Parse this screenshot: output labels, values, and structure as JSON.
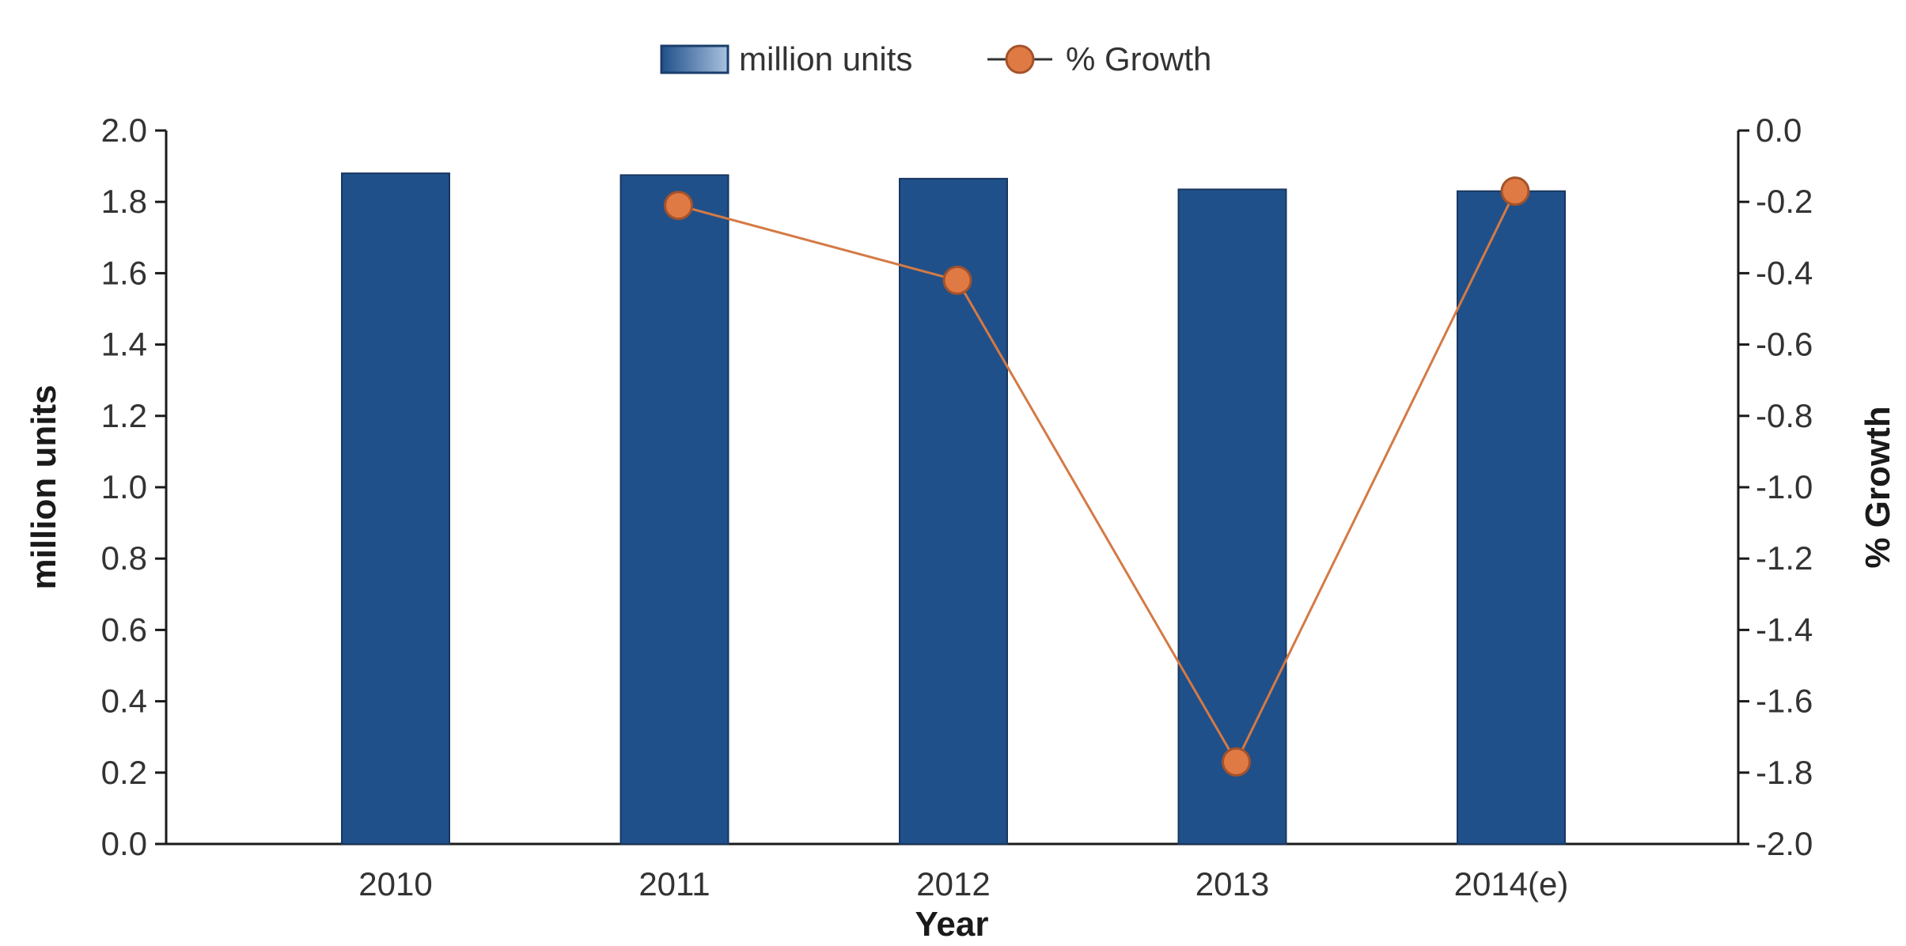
{
  "chart_data": {
    "type": "bar",
    "categories": [
      "2010",
      "2011",
      "2012",
      "2013",
      "2014(e)"
    ],
    "series": [
      {
        "name": "million units",
        "type": "bar",
        "axis": "left",
        "color": "#20508a",
        "values": [
          1.88,
          1.875,
          1.865,
          1.835,
          1.83
        ]
      },
      {
        "name": "% Growth",
        "type": "line",
        "axis": "right",
        "color": "#d47a45",
        "marker_color": "#e07a45",
        "values": [
          null,
          -0.21,
          -0.42,
          -1.77,
          -0.17
        ]
      }
    ],
    "xlabel": "Year",
    "ylabel": "million units",
    "y2label": "% Growth",
    "ylim": [
      0,
      2.0
    ],
    "y2lim": [
      -2.0,
      0.0
    ],
    "yticks": [
      "0.0",
      "0.2",
      "0.4",
      "0.6",
      "0.8",
      "1.0",
      "1.2",
      "1.4",
      "1.6",
      "1.8",
      "2.0"
    ],
    "y2ticks": [
      "-2.0",
      "-1.8",
      "-1.6",
      "-1.4",
      "-1.2",
      "-1.0",
      "-0.8",
      "-0.6",
      "-0.4",
      "-0.2",
      "0.0"
    ],
    "legend_position": "top-center",
    "grid": false
  }
}
